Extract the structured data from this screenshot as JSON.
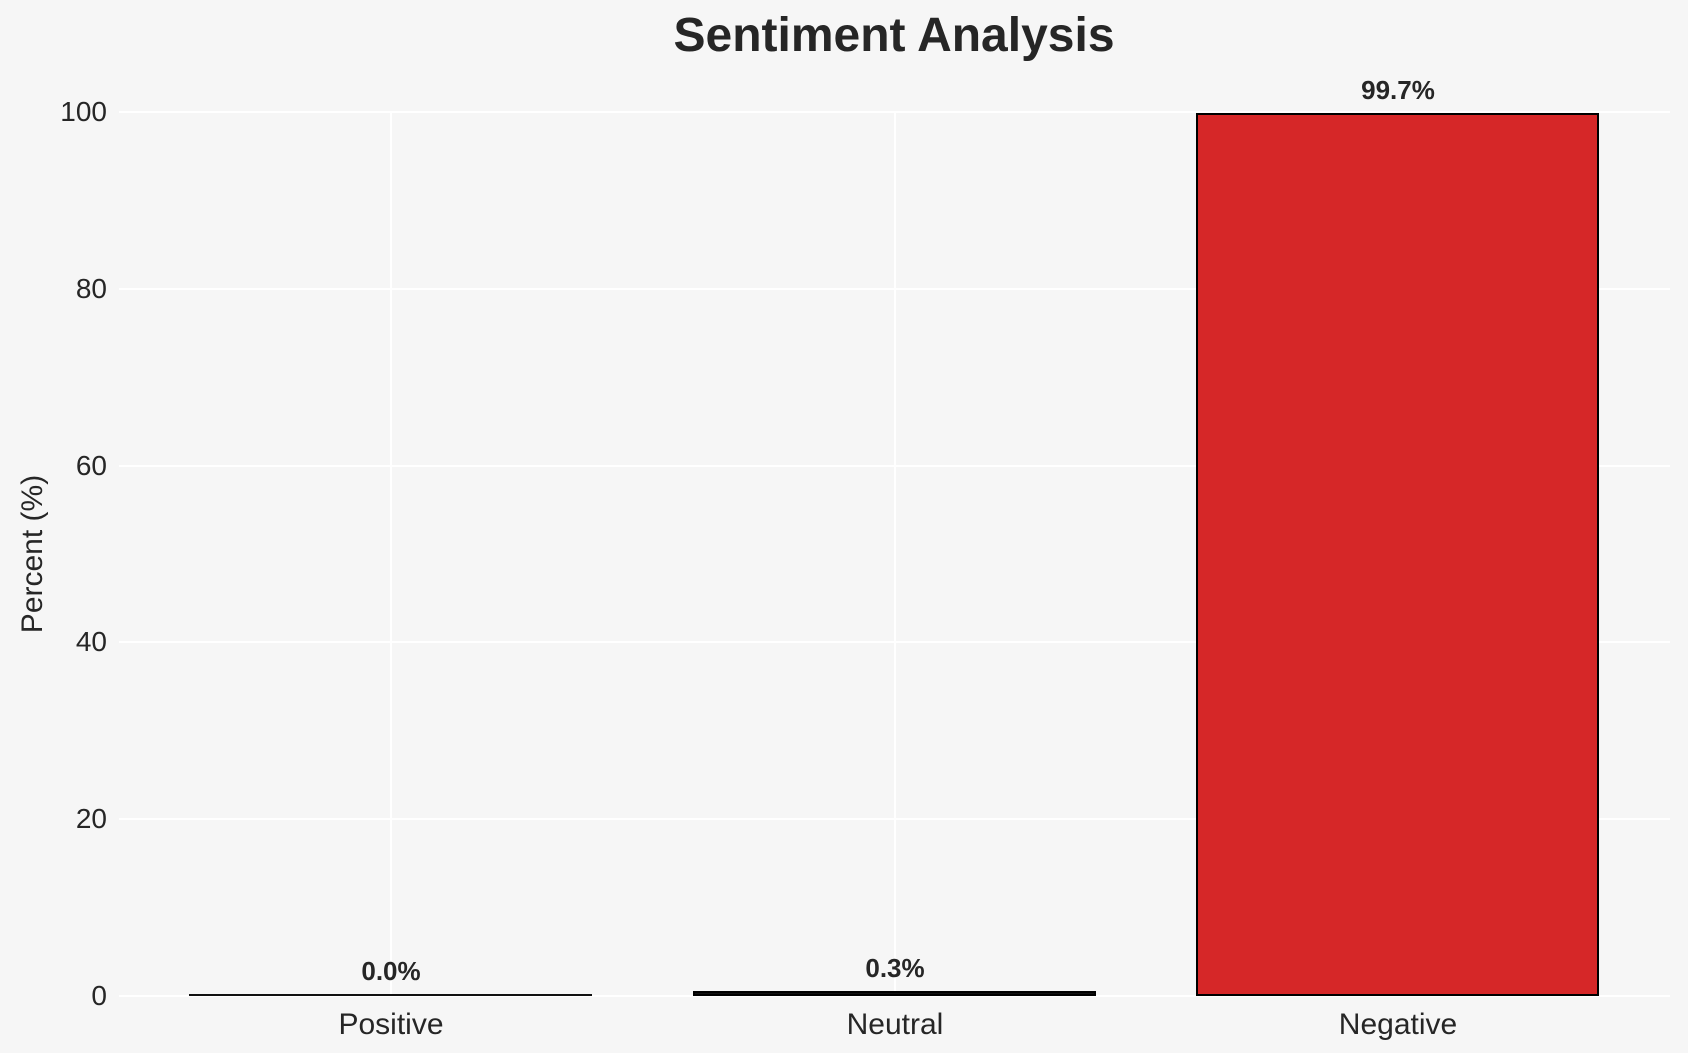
{
  "chart_data": {
    "type": "bar",
    "title": "Sentiment Analysis",
    "categories": [
      "Positive",
      "Neutral",
      "Negative"
    ],
    "values": [
      0.0,
      0.3,
      99.7
    ],
    "value_labels": [
      "0.0%",
      "0.3%",
      "99.7%"
    ],
    "bar_colors": [
      "#111111",
      "#111111",
      "#d62728"
    ],
    "bar_edge_color": "#000000",
    "xlabel": "",
    "ylabel": "Percent (%)",
    "ylim": [
      0,
      100
    ],
    "yticks": [
      0,
      20,
      40,
      60,
      80,
      100
    ],
    "grid": true,
    "legend": "none",
    "grid_color": "#ffffff",
    "background_color": "#f6f6f6",
    "text_color": "#262626"
  }
}
